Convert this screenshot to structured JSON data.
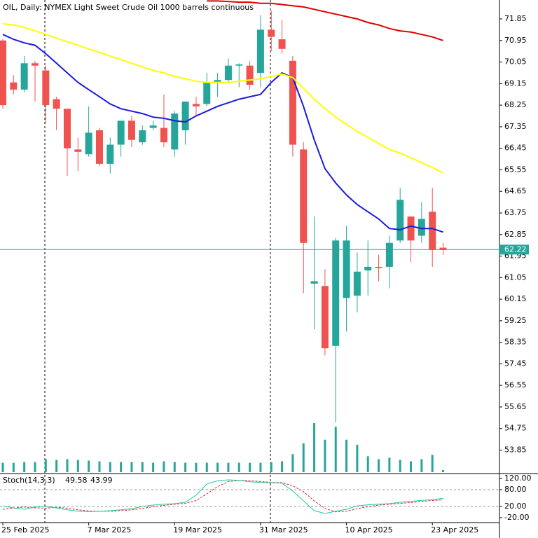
{
  "chart_data": {
    "type": "candlestick",
    "title": "OIL, Daily:  NYMEX Light Sweet Crude Oil 1000 barrels continuous",
    "x": [
      "25 Feb 2025",
      null,
      null,
      null,
      null,
      null,
      null,
      null,
      "7 Mar 2025",
      null,
      null,
      null,
      null,
      null,
      null,
      null,
      "19 Mar 2025",
      null,
      null,
      null,
      null,
      null,
      null,
      null,
      "31 Mar 2025",
      null,
      null,
      null,
      null,
      null,
      null,
      null,
      "10 Apr 2025",
      null,
      null,
      null,
      null,
      null,
      null,
      null,
      "23 Apr 2025",
      null
    ],
    "candles": {
      "open": [
        70.95,
        69.2,
        68.9,
        70.0,
        69.7,
        68.5,
        68.1,
        66.4,
        66.2,
        67.2,
        65.8,
        66.6,
        67.6,
        66.7,
        67.3,
        67.3,
        66.4,
        67.2,
        68.3,
        68.3,
        69.2,
        69.3,
        69.9,
        69.9,
        69.6,
        71.4,
        71.0,
        70.1,
        66.4,
        60.8,
        60.7,
        58.2,
        60.2,
        60.3,
        61.35,
        61.5,
        61.5,
        62.6,
        63.6,
        62.8,
        63.8,
        62.3
      ],
      "high": [
        71.0,
        69.5,
        70.3,
        70.1,
        69.9,
        68.6,
        68.1,
        66.9,
        68.2,
        67.3,
        66.9,
        67.6,
        67.8,
        67.4,
        67.6,
        68.7,
        68.0,
        68.4,
        68.6,
        69.6,
        69.6,
        70.2,
        70.0,
        70.1,
        72.0,
        72.2,
        71.8,
        70.3,
        66.7,
        63.6,
        61.4,
        62.7,
        63.2,
        62.1,
        62.6,
        62.0,
        62.8,
        64.8,
        63.6,
        64.2,
        64.8,
        62.5
      ],
      "low": [
        68.1,
        68.7,
        68.8,
        68.4,
        67.5,
        67.2,
        65.3,
        65.5,
        66.1,
        65.7,
        65.4,
        66.1,
        66.5,
        66.6,
        67.2,
        66.5,
        66.1,
        66.6,
        67.8,
        68.2,
        68.6,
        69.2,
        69.0,
        68.9,
        69.0,
        70.5,
        70.4,
        66.1,
        60.4,
        58.9,
        57.8,
        55.0,
        58.8,
        59.6,
        60.3,
        60.9,
        60.6,
        62.5,
        61.7,
        62.5,
        61.5,
        62.0
      ],
      "close": [
        68.25,
        68.9,
        70.0,
        69.9,
        68.25,
        68.1,
        66.45,
        66.3,
        67.1,
        65.8,
        66.6,
        67.6,
        66.8,
        67.2,
        67.4,
        66.7,
        67.9,
        68.4,
        68.2,
        69.2,
        69.3,
        69.9,
        69.95,
        69.1,
        71.4,
        71.1,
        70.6,
        66.6,
        62.5,
        60.9,
        58.1,
        62.6,
        62.6,
        61.3,
        61.5,
        61.45,
        62.5,
        64.3,
        62.6,
        63.5,
        62.2,
        62.2
      ]
    },
    "up_color": "#26a69a",
    "down_color": "#ef5350",
    "ylim": [
      52.9,
      72.64
    ],
    "yticks": [
      71.85,
      70.95,
      70.05,
      69.15,
      68.25,
      67.35,
      66.45,
      65.55,
      64.65,
      63.75,
      62.85,
      61.95,
      61.05,
      60.15,
      59.25,
      58.35,
      57.45,
      56.55,
      55.65,
      54.75,
      53.85
    ],
    "last_price": 62.22,
    "moving_averages": [
      {
        "color": "#1a1adf",
        "values": [
          71.2,
          71.0,
          70.85,
          70.75,
          70.4,
          70.0,
          69.6,
          69.2,
          68.9,
          68.6,
          68.3,
          68.1,
          68.0,
          67.9,
          67.75,
          67.7,
          67.6,
          67.55,
          67.8,
          68.0,
          68.2,
          68.35,
          68.5,
          68.6,
          68.7,
          69.2,
          69.6,
          69.4,
          68.2,
          66.8,
          65.6,
          65.0,
          64.5,
          64.1,
          63.8,
          63.5,
          63.1,
          63.05,
          63.2,
          63.1,
          63.1,
          62.95
        ]
      },
      {
        "color": "#ffff00",
        "values": [
          71.65,
          71.6,
          71.5,
          71.35,
          71.2,
          71.05,
          70.9,
          70.75,
          70.6,
          70.45,
          70.3,
          70.15,
          70.0,
          69.85,
          69.7,
          69.6,
          69.45,
          69.35,
          69.25,
          69.2,
          69.2,
          69.2,
          69.25,
          69.3,
          69.35,
          69.45,
          69.55,
          69.4,
          68.95,
          68.5,
          68.1,
          67.75,
          67.45,
          67.15,
          66.9,
          66.65,
          66.4,
          66.25,
          66.05,
          65.85,
          65.65,
          65.42
        ]
      },
      {
        "color": "#e00000",
        "values": [
          null,
          null,
          null,
          null,
          null,
          null,
          null,
          null,
          null,
          null,
          null,
          null,
          null,
          null,
          null,
          null,
          null,
          null,
          null,
          72.6,
          72.6,
          72.58,
          72.55,
          72.55,
          72.5,
          72.5,
          72.45,
          72.4,
          72.35,
          72.25,
          72.15,
          72.05,
          71.95,
          71.85,
          71.7,
          71.6,
          71.45,
          71.35,
          71.3,
          71.2,
          71.1,
          70.95
        ]
      }
    ],
    "volume": {
      "color": "#26a69a",
      "values": [
        13,
        13,
        14,
        14,
        18,
        17,
        18,
        17,
        16,
        15,
        14,
        14,
        14,
        14,
        13,
        15,
        14,
        13,
        13,
        13,
        13,
        13,
        13,
        13,
        13,
        14,
        15,
        25,
        40,
        68,
        45,
        63,
        45,
        38,
        22,
        18,
        20,
        17,
        15,
        18,
        24,
        3
      ]
    },
    "stoch": {
      "label": "Stoch(14,3,3)",
      "k": {
        "color": "#20c8a0",
        "values": [
          22,
          15,
          10,
          18,
          20,
          15,
          8,
          3,
          2,
          3,
          5,
          8,
          12,
          20,
          25,
          28,
          30,
          35,
          60,
          100,
          112,
          115,
          113,
          108,
          106,
          105,
          103,
          75,
          40,
          5,
          -5,
          3,
          10,
          22,
          26,
          28,
          30,
          35,
          38,
          42,
          44,
          49.58
        ]
      },
      "d": {
        "color": "#e02020",
        "values": [
          10,
          14,
          18,
          15,
          14,
          17,
          14,
          8,
          4,
          3,
          3,
          5,
          8,
          13,
          19,
          24,
          28,
          31,
          41,
          65,
          91,
          109,
          113,
          112,
          109,
          106,
          105,
          94,
          73,
          40,
          13,
          1,
          3,
          12,
          19,
          25,
          28,
          31,
          34,
          38,
          41,
          43.99
        ]
      },
      "ylim": [
        -37.5,
        135
      ],
      "yticks": [
        {
          "value": 120,
          "label": "120.00"
        },
        {
          "value": 80,
          "label": "80.00"
        },
        {
          "value": 20,
          "label": "20.00"
        },
        {
          "value": -20,
          "label": "-20.00"
        }
      ],
      "levels": [
        80,
        20
      ]
    }
  }
}
